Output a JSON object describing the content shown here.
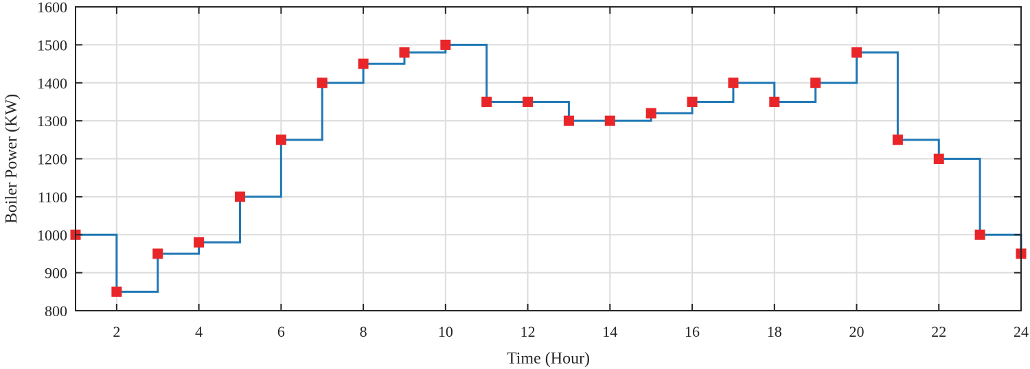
{
  "chart_data": {
    "type": "line",
    "step": "post",
    "xlabel": "Time (Hour)",
    "ylabel": "Boiler Power (KW)",
    "xlim": [
      1,
      24
    ],
    "ylim": [
      800,
      1600
    ],
    "xticks": [
      2,
      4,
      6,
      8,
      10,
      12,
      14,
      16,
      18,
      20,
      22,
      24
    ],
    "yticks": [
      800,
      900,
      1000,
      1100,
      1200,
      1300,
      1400,
      1500,
      1600
    ],
    "grid": true,
    "line_color": "#1f77b4",
    "marker_color": "#e8262a",
    "marker": "square",
    "x": [
      1,
      2,
      3,
      4,
      5,
      6,
      7,
      8,
      9,
      10,
      11,
      12,
      13,
      14,
      15,
      16,
      17,
      18,
      19,
      20,
      21,
      22,
      23,
      24
    ],
    "values": [
      1000,
      850,
      950,
      980,
      1100,
      1250,
      1400,
      1450,
      1480,
      1500,
      1350,
      1350,
      1300,
      1300,
      1320,
      1350,
      1400,
      1350,
      1400,
      1480,
      1250,
      1200,
      1000,
      950
    ]
  }
}
